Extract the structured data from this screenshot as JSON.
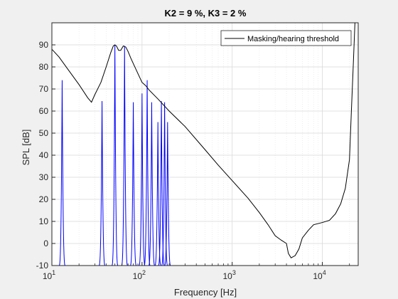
{
  "chart_data": {
    "type": "line",
    "title": "K2 = 9 %, K3 = 2 %",
    "xlabel": "Frequency [Hz]",
    "ylabel": "SPL [dB]",
    "xscale": "log",
    "xlim": [
      10,
      25000
    ],
    "ylim": [
      -10,
      100
    ],
    "x_ticks": [
      {
        "value": 10,
        "base": "10",
        "exp": "1"
      },
      {
        "value": 100,
        "base": "10",
        "exp": "2"
      },
      {
        "value": 1000,
        "base": "10",
        "exp": "3"
      },
      {
        "value": 10000,
        "base": "10",
        "exp": "4"
      }
    ],
    "y_ticks": [
      -10,
      0,
      10,
      20,
      30,
      40,
      50,
      60,
      70,
      80,
      90
    ],
    "grid": true,
    "minor_grid": true,
    "legend": {
      "location": "top-right",
      "entries": [
        "Masking/hearing threshold"
      ]
    },
    "colors": {
      "threshold": "#000000",
      "spectrum": "#0000ff",
      "grid": "#d9d9d9",
      "axes_bg": "#ffffff"
    },
    "series": [
      {
        "name": "Masking/hearing threshold",
        "x": [
          10,
          12,
          15,
          20,
          25,
          27.5,
          30,
          35,
          40,
          45,
          48,
          50,
          52,
          55,
          58,
          62,
          66,
          70,
          75,
          80,
          90,
          100,
          110,
          120,
          150,
          200,
          300,
          500,
          700,
          1000,
          1500,
          2000,
          2500,
          3000,
          3500,
          4000,
          4200,
          4500,
          5000,
          5500,
          6000,
          7000,
          8000,
          10000,
          12000,
          14000,
          16000,
          18000,
          20000,
          21000,
          22000,
          23000
        ],
        "y": [
          88,
          84.5,
          79,
          72,
          66,
          64,
          67.5,
          73,
          80,
          86.5,
          89.5,
          90,
          89.5,
          87.5,
          87.5,
          89.5,
          89,
          87,
          84,
          81.5,
          77,
          73,
          71.5,
          69.5,
          65.5,
          60,
          53,
          42.5,
          35.5,
          28.5,
          20.5,
          14,
          8.5,
          3.5,
          1.5,
          0,
          -4.5,
          -6.5,
          -5.5,
          -2.5,
          2.5,
          6,
          8.5,
          9.5,
          10.5,
          13.5,
          18,
          25,
          38,
          60,
          80,
          100
        ]
      },
      {
        "name": "",
        "type": "spectral_peaks",
        "peaks": [
          {
            "f": 13,
            "db": 74
          },
          {
            "f": 36,
            "db": 64.5
          },
          {
            "f": 50,
            "db": 90
          },
          {
            "f": 64,
            "db": 89.5
          },
          {
            "f": 80,
            "db": 64
          },
          {
            "f": 100,
            "db": 68
          },
          {
            "f": 114,
            "db": 74
          },
          {
            "f": 128,
            "db": 64
          },
          {
            "f": 150,
            "db": 55
          },
          {
            "f": 164,
            "db": 64.5
          },
          {
            "f": 178,
            "db": 64
          },
          {
            "f": 192,
            "db": 55
          }
        ]
      }
    ]
  }
}
